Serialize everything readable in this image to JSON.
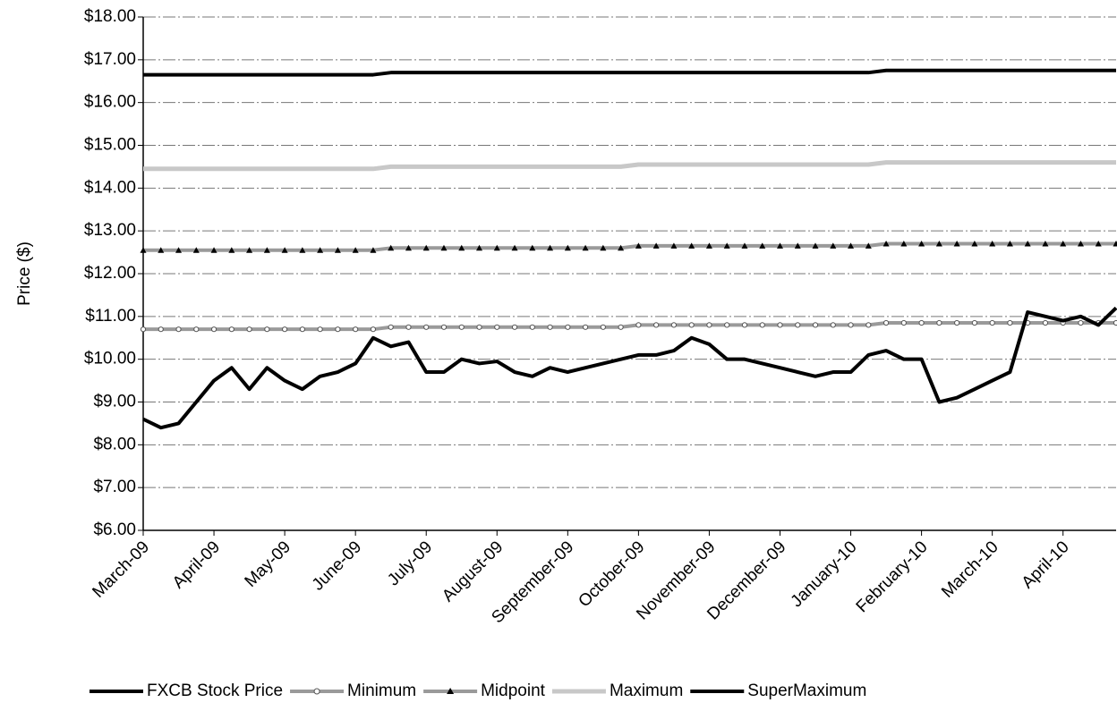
{
  "chart_data": {
    "type": "line",
    "y_label": "Price ($)",
    "categories": [
      "March-09",
      null,
      null,
      null,
      "April-09",
      null,
      null,
      null,
      "May-09",
      null,
      null,
      null,
      "June-09",
      null,
      null,
      null,
      "July-09",
      null,
      null,
      null,
      "August-09",
      null,
      null,
      null,
      "September-09",
      null,
      null,
      null,
      "October-09",
      null,
      null,
      null,
      "November-09",
      null,
      null,
      null,
      "December-09",
      null,
      null,
      null,
      "January-10",
      null,
      null,
      null,
      "February-10",
      null,
      null,
      null,
      "March-10",
      null,
      null,
      null,
      "April-10",
      null,
      null,
      null
    ],
    "series": [
      {
        "name": "FXCB Stock Price",
        "color": "#000000",
        "values": [
          8.6,
          8.4,
          8.5,
          9.0,
          9.5,
          9.8,
          9.3,
          9.8,
          9.5,
          9.3,
          9.6,
          9.7,
          9.9,
          10.5,
          10.3,
          10.4,
          9.7,
          9.7,
          10.0,
          9.9,
          9.95,
          9.7,
          9.6,
          9.8,
          9.7,
          9.8,
          9.9,
          10.0,
          10.1,
          10.1,
          10.2,
          10.5,
          10.35,
          10.0,
          10.0,
          9.9,
          9.8,
          9.7,
          9.6,
          9.7,
          9.7,
          10.1,
          10.2,
          10.0,
          10.0,
          9.0,
          9.1,
          9.3,
          9.5,
          9.7,
          11.1,
          11.0,
          10.9,
          11.0,
          10.8,
          11.2
        ]
      },
      {
        "name": "Minimum",
        "color": "#9a9a9a",
        "values": [
          10.7,
          10.7,
          10.7,
          10.7,
          10.7,
          10.7,
          10.7,
          10.7,
          10.7,
          10.7,
          10.7,
          10.7,
          10.7,
          10.7,
          10.75,
          10.75,
          10.75,
          10.75,
          10.75,
          10.75,
          10.75,
          10.75,
          10.75,
          10.75,
          10.75,
          10.75,
          10.75,
          10.75,
          10.8,
          10.8,
          10.8,
          10.8,
          10.8,
          10.8,
          10.8,
          10.8,
          10.8,
          10.8,
          10.8,
          10.8,
          10.8,
          10.8,
          10.85,
          10.85,
          10.85,
          10.85,
          10.85,
          10.85,
          10.85,
          10.85,
          10.85,
          10.85,
          10.85,
          10.85,
          10.85,
          10.85
        ]
      },
      {
        "name": "Midpoint",
        "color": "#9a9a9a",
        "values": [
          12.55,
          12.55,
          12.55,
          12.55,
          12.55,
          12.55,
          12.55,
          12.55,
          12.55,
          12.55,
          12.55,
          12.55,
          12.55,
          12.55,
          12.6,
          12.6,
          12.6,
          12.6,
          12.6,
          12.6,
          12.6,
          12.6,
          12.6,
          12.6,
          12.6,
          12.6,
          12.6,
          12.6,
          12.65,
          12.65,
          12.65,
          12.65,
          12.65,
          12.65,
          12.65,
          12.65,
          12.65,
          12.65,
          12.65,
          12.65,
          12.65,
          12.65,
          12.7,
          12.7,
          12.7,
          12.7,
          12.7,
          12.7,
          12.7,
          12.7,
          12.7,
          12.7,
          12.7,
          12.7,
          12.7,
          12.7
        ]
      },
      {
        "name": "Maximum",
        "color": "#c8c8c8",
        "values": [
          14.45,
          14.45,
          14.45,
          14.45,
          14.45,
          14.45,
          14.45,
          14.45,
          14.45,
          14.45,
          14.45,
          14.45,
          14.45,
          14.45,
          14.5,
          14.5,
          14.5,
          14.5,
          14.5,
          14.5,
          14.5,
          14.5,
          14.5,
          14.5,
          14.5,
          14.5,
          14.5,
          14.5,
          14.55,
          14.55,
          14.55,
          14.55,
          14.55,
          14.55,
          14.55,
          14.55,
          14.55,
          14.55,
          14.55,
          14.55,
          14.55,
          14.55,
          14.6,
          14.6,
          14.6,
          14.6,
          14.6,
          14.6,
          14.6,
          14.6,
          14.6,
          14.6,
          14.6,
          14.6,
          14.6,
          14.6
        ]
      },
      {
        "name": "SuperMaximum",
        "color": "#000000",
        "values": [
          16.65,
          16.65,
          16.65,
          16.65,
          16.65,
          16.65,
          16.65,
          16.65,
          16.65,
          16.65,
          16.65,
          16.65,
          16.65,
          16.65,
          16.7,
          16.7,
          16.7,
          16.7,
          16.7,
          16.7,
          16.7,
          16.7,
          16.7,
          16.7,
          16.7,
          16.7,
          16.7,
          16.7,
          16.7,
          16.7,
          16.7,
          16.7,
          16.7,
          16.7,
          16.7,
          16.7,
          16.7,
          16.7,
          16.7,
          16.7,
          16.7,
          16.7,
          16.75,
          16.75,
          16.75,
          16.75,
          16.75,
          16.75,
          16.75,
          16.75,
          16.75,
          16.75,
          16.75,
          16.75,
          16.75,
          16.75
        ]
      }
    ],
    "ylim": [
      6,
      18
    ],
    "yticks": [
      {
        "value": 6,
        "label": "$6.00"
      },
      {
        "value": 7,
        "label": "$7.00"
      },
      {
        "value": 8,
        "label": "$8.00"
      },
      {
        "value": 9,
        "label": "$9.00"
      },
      {
        "value": 10,
        "label": "$10.00"
      },
      {
        "value": 11,
        "label": "$11.00"
      },
      {
        "value": 12,
        "label": "$12.00"
      },
      {
        "value": 13,
        "label": "$13.00"
      },
      {
        "value": 14,
        "label": "$14.00"
      },
      {
        "value": 15,
        "label": "$15.00"
      },
      {
        "value": 16,
        "label": "$16.00"
      },
      {
        "value": 17,
        "label": "$17.00"
      },
      {
        "value": 18,
        "label": "$18.00"
      }
    ],
    "grid": true,
    "legend": "bottom"
  }
}
